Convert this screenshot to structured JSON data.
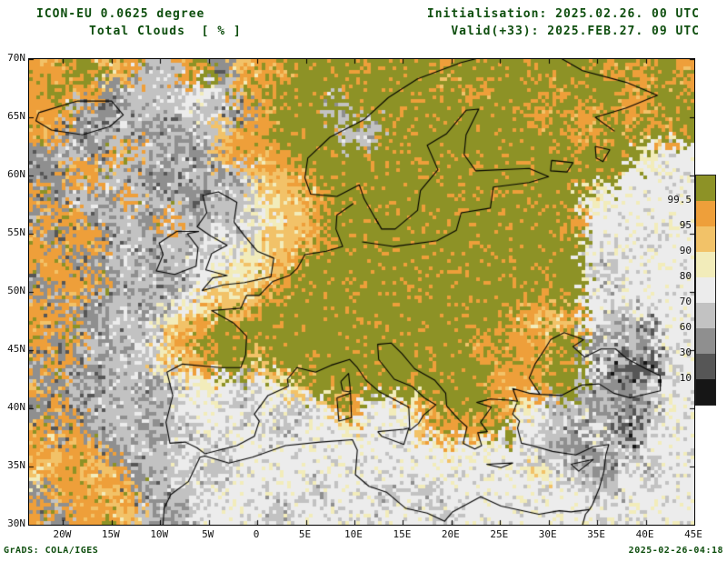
{
  "header": {
    "model_line": "ICON-EU 0.0625 degree",
    "variable_line": "Total Clouds  [ % ]",
    "init_line": "Initialisation: 2025.02.26. 00 UTC",
    "valid_line": "Valid(+33): 2025.FEB.27. 09 UTC",
    "text_color": "#0e4e0e"
  },
  "footer": {
    "left": "GrADS: COLA/IGES",
    "right": "2025-02-26-04:18"
  },
  "chart_data": {
    "type": "heatmap",
    "title": "Total Clouds [%]",
    "model": "ICON-EU 0.0625 degree",
    "init_time": "2025.02.26. 00 UTC",
    "valid_time": "2025.FEB.27. 09 UTC (+33)",
    "units": "%",
    "lon_range": [
      -23.5,
      45
    ],
    "lat_range": [
      30,
      70
    ],
    "grid_on": false,
    "legend_position": "right",
    "lon_ticks": [
      {
        "value": -20,
        "label": "20W"
      },
      {
        "value": -15,
        "label": "15W"
      },
      {
        "value": -10,
        "label": "10W"
      },
      {
        "value": -5,
        "label": "5W"
      },
      {
        "value": 0,
        "label": "0"
      },
      {
        "value": 5,
        "label": "5E"
      },
      {
        "value": 10,
        "label": "10E"
      },
      {
        "value": 15,
        "label": "15E"
      },
      {
        "value": 20,
        "label": "20E"
      },
      {
        "value": 25,
        "label": "25E"
      },
      {
        "value": 30,
        "label": "30E"
      },
      {
        "value": 35,
        "label": "35E"
      },
      {
        "value": 40,
        "label": "40E"
      },
      {
        "value": 45,
        "label": "45E"
      }
    ],
    "lat_ticks": [
      {
        "value": 70,
        "label": "70N"
      },
      {
        "value": 65,
        "label": "65N"
      },
      {
        "value": 60,
        "label": "60N"
      },
      {
        "value": 55,
        "label": "55N"
      },
      {
        "value": 50,
        "label": "50N"
      },
      {
        "value": 45,
        "label": "45N"
      },
      {
        "value": 40,
        "label": "40N"
      },
      {
        "value": 35,
        "label": "35N"
      },
      {
        "value": 30,
        "label": "30N"
      }
    ],
    "levels_percent": [
      10,
      30,
      60,
      70,
      80,
      90,
      95,
      99.5
    ],
    "colorbar_labels_top_to_bottom": [
      "99.5",
      "95",
      "90",
      "80",
      "70",
      "60",
      "30",
      "10"
    ],
    "palette_low_to_high": [
      "#161616",
      "#565656",
      "#8f8f8f",
      "#c2c2c2",
      "#ececec",
      "#f2ecba",
      "#f2c268",
      "#ee9f3a",
      "#8d9226"
    ],
    "cloud_grid": {
      "note": "Approximate cloud-cover field; one palette index (0=clear/dark .. 8=overcast/olive) per cell, 36 cols x 22 rows covering lon -23.5..45, lat 70..30 (top row = north)",
      "cols": 36,
      "rows": 22,
      "rows_data": [
        "778867337826778888888878888888878787",
        "787723334437878888888888788878887788",
        "773223334332788838888888888788787788",
        "772333223367788883388888888887788878",
        "233277332267778888888888888888888544",
        "227733223323667888888888888888884444",
        "723327332233566788888888888888544444",
        "277233273333456788888888888887444444",
        "727723333343566788888888888888444444",
        "772233233445567888888888888888434444",
        "277723323455678888888888888888434444",
        "727233234566788888888888888788444444",
        "772233356788888888888888887667433244",
        "727323467888888888888888787788233244",
        "272233356788688888888888877788421134",
        "723233234543456888888888877788322344",
        "272333334443443467445788875433232344",
        "727233233444434445444677784432421344",
        "767723334434444444444454544332233444",
        "677672334334444444444444444543324344",
        "277767233444444344434344444444334444",
        "727776323444434444444434444444444444"
      ]
    },
    "noise_seed": 7,
    "coastlines": [
      [
        [
          12.5,
          55.8
        ],
        [
          11,
          58
        ],
        [
          10.5,
          59.2
        ],
        [
          8.2,
          58.2
        ],
        [
          5.5,
          58.4
        ],
        [
          4.9,
          59.8
        ],
        [
          5.2,
          61.5
        ],
        [
          7.5,
          63.3
        ],
        [
          11,
          64.8
        ],
        [
          13.5,
          66.7
        ],
        [
          16.5,
          68.3
        ],
        [
          21,
          69.7
        ],
        [
          26.5,
          70.9
        ],
        [
          31,
          70.2
        ],
        [
          33.5,
          69
        ],
        [
          38,
          68
        ],
        [
          41.2,
          66.9
        ],
        [
          38,
          65.8
        ],
        [
          34.8,
          65
        ],
        [
          36.8,
          63.8
        ]
      ],
      [
        [
          10.8,
          54.3
        ],
        [
          14,
          53.9
        ],
        [
          18.5,
          54.4
        ],
        [
          20.5,
          55.3
        ],
        [
          21,
          56.8
        ],
        [
          24,
          57.2
        ],
        [
          24.3,
          59
        ],
        [
          28,
          59.4
        ],
        [
          30,
          59.9
        ],
        [
          28,
          60.6
        ],
        [
          22.5,
          60.4
        ],
        [
          21.3,
          61.8
        ],
        [
          21.5,
          63.5
        ],
        [
          22.8,
          65.7
        ],
        [
          21.5,
          65.6
        ],
        [
          19.5,
          63.6
        ],
        [
          17.5,
          62.6
        ],
        [
          18.6,
          60.5
        ],
        [
          16.8,
          58.7
        ],
        [
          16.5,
          57
        ],
        [
          14.2,
          55.4
        ],
        [
          12.8,
          55.4
        ],
        [
          12.2,
          56.3
        ]
      ],
      [
        [
          -5.7,
          50.1
        ],
        [
          -3.5,
          50.6
        ],
        [
          -1.3,
          50.8
        ],
        [
          1.4,
          51.3
        ],
        [
          1.7,
          52.9
        ],
        [
          0,
          53.5
        ],
        [
          -1.3,
          54.8
        ],
        [
          -2.4,
          56
        ],
        [
          -2.1,
          57.7
        ],
        [
          -4,
          58.6
        ],
        [
          -5.6,
          58.3
        ],
        [
          -5.2,
          56.8
        ],
        [
          -6.2,
          55.6
        ],
        [
          -4.8,
          54.8
        ],
        [
          -3.1,
          54
        ],
        [
          -4.7,
          53.3
        ],
        [
          -5.3,
          51.9
        ],
        [
          -3.1,
          51.4
        ],
        [
          -4.6,
          51.2
        ],
        [
          -5.7,
          50.1
        ]
      ],
      [
        [
          -6,
          55.2
        ],
        [
          -8.3,
          55.2
        ],
        [
          -10.1,
          54.2
        ],
        [
          -9.7,
          53.2
        ],
        [
          -10.4,
          51.8
        ],
        [
          -8.5,
          51.5
        ],
        [
          -6.3,
          52.2
        ],
        [
          -6.1,
          53.8
        ],
        [
          -7.2,
          55
        ],
        [
          -6,
          55.2
        ]
      ],
      [
        [
          -22.5,
          65.4
        ],
        [
          -18.5,
          66.4
        ],
        [
          -15,
          66.4
        ],
        [
          -13.8,
          65.2
        ],
        [
          -15.2,
          64.2
        ],
        [
          -18,
          63.5
        ],
        [
          -21.2,
          63.9
        ],
        [
          -22.8,
          64.7
        ],
        [
          -22.5,
          65.4
        ]
      ],
      [
        [
          9.9,
          57.6
        ],
        [
          8.2,
          56.6
        ],
        [
          8.1,
          55.4
        ],
        [
          8.8,
          53.9
        ],
        [
          7.1,
          53.5
        ],
        [
          4.9,
          53.2
        ],
        [
          4.1,
          52
        ],
        [
          3.3,
          51.4
        ],
        [
          1.6,
          50.9
        ],
        [
          0.2,
          49.7
        ],
        [
          -1.1,
          49.7
        ],
        [
          -1.7,
          48.6
        ],
        [
          -4.7,
          48.4
        ],
        [
          -2.4,
          47.3
        ],
        [
          -1.1,
          46.2
        ],
        [
          -1.2,
          44.6
        ],
        [
          -1.7,
          43.5
        ],
        [
          -3.8,
          43.5
        ],
        [
          -7.7,
          43.8
        ],
        [
          -9.3,
          43.1
        ],
        [
          -8.7,
          41.1
        ],
        [
          -9.4,
          38.8
        ],
        [
          -9,
          37
        ],
        [
          -7.4,
          37.1
        ],
        [
          -6.2,
          36.6
        ],
        [
          -5.4,
          36.1
        ]
      ],
      [
        [
          -5.4,
          36.1
        ],
        [
          -2.1,
          36.8
        ],
        [
          -0.3,
          37.6
        ],
        [
          0.2,
          38.9
        ],
        [
          -0.3,
          39.5
        ],
        [
          1.1,
          41.1
        ],
        [
          3.2,
          41.9
        ],
        [
          3.1,
          42.5
        ],
        [
          4.1,
          43.5
        ],
        [
          6,
          43.1
        ],
        [
          7.6,
          43.7
        ],
        [
          9.5,
          44.2
        ],
        [
          10.3,
          43.5
        ],
        [
          11.2,
          42.4
        ],
        [
          12.6,
          41.4
        ],
        [
          14,
          40.8
        ],
        [
          15.6,
          40.1
        ],
        [
          15.7,
          38.1
        ],
        [
          16.6,
          38.7
        ],
        [
          17.1,
          39.4
        ],
        [
          18.4,
          40.3
        ],
        [
          17.2,
          40.9
        ],
        [
          15.9,
          41.9
        ],
        [
          14.1,
          42.5
        ],
        [
          12.5,
          44.2
        ],
        [
          12.4,
          45.5
        ],
        [
          13.8,
          45.6
        ],
        [
          14.9,
          44.7
        ],
        [
          16.2,
          43.4
        ],
        [
          18.3,
          42.4
        ],
        [
          19.4,
          41.3
        ],
        [
          19.5,
          40.2
        ],
        [
          20.8,
          39
        ],
        [
          21.6,
          38.4
        ],
        [
          21.2,
          37
        ],
        [
          22.4,
          36.5
        ],
        [
          23.1,
          36.8
        ],
        [
          22.7,
          37.9
        ],
        [
          23.7,
          38
        ],
        [
          23,
          38.8
        ],
        [
          24.1,
          40.1
        ],
        [
          22.6,
          40.5
        ],
        [
          24,
          40.8
        ],
        [
          25.9,
          40.7
        ],
        [
          26.8,
          40.6
        ],
        [
          26.3,
          41.7
        ],
        [
          28,
          41.3
        ],
        [
          29.1,
          41.2
        ]
      ],
      [
        [
          29.1,
          41.2
        ],
        [
          31.3,
          41.1
        ],
        [
          33.4,
          42
        ],
        [
          35.2,
          42.1
        ],
        [
          36.7,
          41.3
        ],
        [
          38.4,
          40.9
        ],
        [
          41.5,
          41.5
        ],
        [
          41.5,
          42.8
        ],
        [
          40,
          43.4
        ],
        [
          38,
          44.3
        ],
        [
          36.9,
          45.1
        ],
        [
          35.4,
          45.1
        ],
        [
          33.7,
          44.4
        ],
        [
          32.5,
          45.3
        ],
        [
          33.6,
          45.9
        ],
        [
          31.6,
          46.5
        ],
        [
          30.2,
          45.9
        ],
        [
          29.7,
          45.2
        ],
        [
          28.6,
          43.8
        ],
        [
          28,
          42.6
        ],
        [
          29.1,
          41.2
        ]
      ],
      [
        [
          26.7,
          40.4
        ],
        [
          26.3,
          39.5
        ],
        [
          27,
          38.9
        ],
        [
          26.8,
          38.3
        ],
        [
          27.2,
          37
        ],
        [
          28.3,
          36.8
        ],
        [
          30.4,
          36.3
        ],
        [
          32.8,
          36
        ],
        [
          34.6,
          36.7
        ],
        [
          36.2,
          36.9
        ],
        [
          35.9,
          36
        ],
        [
          35.7,
          34.6
        ],
        [
          35.2,
          33.1
        ],
        [
          34.5,
          31.7
        ],
        [
          34.2,
          31.3
        ],
        [
          33.8,
          30.9
        ],
        [
          33.5,
          30
        ]
      ],
      [
        [
          -9.7,
          30
        ],
        [
          -9.6,
          31.4
        ],
        [
          -8.9,
          32.6
        ],
        [
          -7.1,
          33.7
        ],
        [
          -5.9,
          35.8
        ],
        [
          -5.4,
          35.9
        ],
        [
          -2.9,
          35.3
        ],
        [
          -0.5,
          35.8
        ],
        [
          2.9,
          36.8
        ],
        [
          6.5,
          37.1
        ],
        [
          9.8,
          37.3
        ],
        [
          10.3,
          36.4
        ],
        [
          10.1,
          34.3
        ],
        [
          11.5,
          33.3
        ],
        [
          13.3,
          32.8
        ],
        [
          15.3,
          31.4
        ],
        [
          17.5,
          31
        ],
        [
          19.3,
          30.3
        ],
        [
          20.1,
          31.1
        ],
        [
          23,
          32.4
        ],
        [
          25.1,
          31.6
        ],
        [
          29,
          30.9
        ],
        [
          31.1,
          31.2
        ],
        [
          32.3,
          31.1
        ],
        [
          34.2,
          31.3
        ]
      ],
      [
        [
          12.4,
          38
        ],
        [
          15.1,
          38.2
        ],
        [
          15.6,
          38.3
        ],
        [
          15.1,
          36.9
        ],
        [
          12.8,
          37.6
        ],
        [
          12.4,
          38
        ]
      ],
      [
        [
          8.2,
          40.9
        ],
        [
          9.6,
          41.3
        ],
        [
          9.7,
          39.2
        ],
        [
          8.4,
          38.9
        ],
        [
          8.2,
          40.9
        ]
      ],
      [
        [
          8.6,
          42.3
        ],
        [
          9.4,
          43
        ],
        [
          9.6,
          41.4
        ],
        [
          8.8,
          41.5
        ],
        [
          8.6,
          42.3
        ]
      ],
      [
        [
          23.6,
          35.2
        ],
        [
          26.3,
          35.3
        ],
        [
          25.1,
          34.9
        ],
        [
          23.6,
          35.2
        ]
      ],
      [
        [
          32.3,
          35.2
        ],
        [
          34.6,
          35.6
        ],
        [
          33.1,
          34.6
        ],
        [
          32.3,
          35.2
        ]
      ],
      [
        [
          30.3,
          61.3
        ],
        [
          32.5,
          61.1
        ],
        [
          31.9,
          60.3
        ],
        [
          30.2,
          60.4
        ],
        [
          30.3,
          61.3
        ]
      ],
      [
        [
          34.8,
          62.5
        ],
        [
          36.3,
          62.2
        ],
        [
          35.6,
          61.2
        ],
        [
          34.9,
          61.5
        ],
        [
          34.8,
          62.5
        ]
      ]
    ]
  }
}
